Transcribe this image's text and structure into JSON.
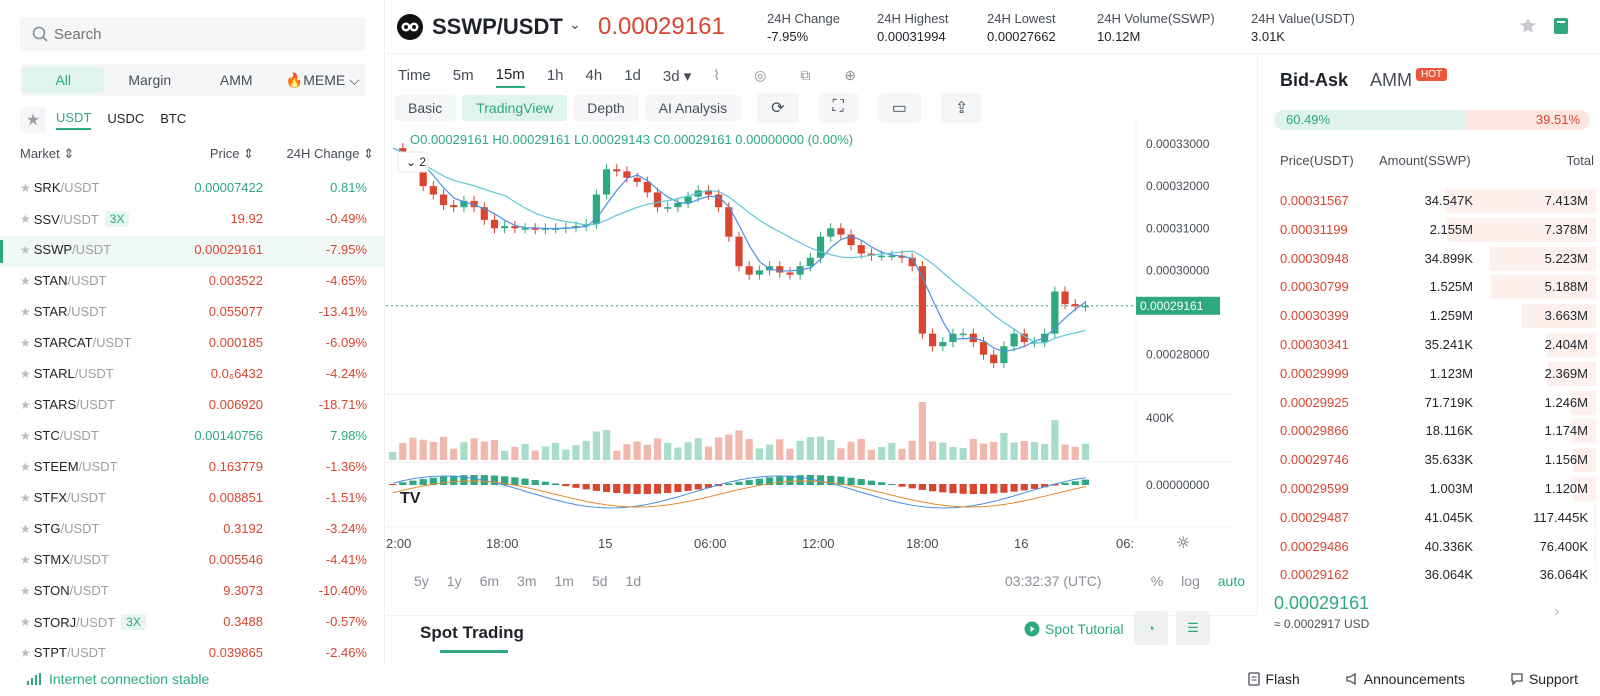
{
  "search": {
    "placeholder": "Search"
  },
  "categories": [
    "All",
    "Margin",
    "AMM",
    "🔥MEME ⌵"
  ],
  "quote_tabs": [
    "USDT",
    "USDC",
    "BTC"
  ],
  "market_header": {
    "market": "Market ⇕",
    "price": "Price ⇕",
    "change": "24H Change ⇕"
  },
  "markets": [
    {
      "base": "SRK",
      "quote": "/USDT",
      "lev": "",
      "price": "0.00007422",
      "change": "0.81%",
      "dir": "up",
      "selected": false
    },
    {
      "base": "SSV",
      "quote": "/USDT",
      "lev": "3X",
      "price": "19.92",
      "change": "-0.49%",
      "dir": "down",
      "selected": false
    },
    {
      "base": "SSWP",
      "quote": "/USDT",
      "lev": "",
      "price": "0.00029161",
      "change": "-7.95%",
      "dir": "down",
      "selected": true
    },
    {
      "base": "STAN",
      "quote": "/USDT",
      "lev": "",
      "price": "0.003522",
      "change": "-4.65%",
      "dir": "down",
      "selected": false
    },
    {
      "base": "STAR",
      "quote": "/USDT",
      "lev": "",
      "price": "0.055077",
      "change": "-13.41%",
      "dir": "down",
      "selected": false
    },
    {
      "base": "STARCAT",
      "quote": "/USDT",
      "lev": "",
      "price": "0.000185",
      "change": "-6.09%",
      "dir": "down",
      "selected": false
    },
    {
      "base": "STARL",
      "quote": "/USDT",
      "lev": "",
      "price": "0.0₆6432",
      "change": "-4.24%",
      "dir": "down",
      "selected": false
    },
    {
      "base": "STARS",
      "quote": "/USDT",
      "lev": "",
      "price": "0.006920",
      "change": "-18.71%",
      "dir": "down",
      "selected": false
    },
    {
      "base": "STC",
      "quote": "/USDT",
      "lev": "",
      "price": "0.00140756",
      "change": "7.98%",
      "dir": "up",
      "selected": false
    },
    {
      "base": "STEEM",
      "quote": "/USDT",
      "lev": "",
      "price": "0.163779",
      "change": "-1.36%",
      "dir": "down",
      "selected": false
    },
    {
      "base": "STFX",
      "quote": "/USDT",
      "lev": "",
      "price": "0.008851",
      "change": "-1.51%",
      "dir": "down",
      "selected": false
    },
    {
      "base": "STG",
      "quote": "/USDT",
      "lev": "",
      "price": "0.3192",
      "change": "-3.24%",
      "dir": "down",
      "selected": false
    },
    {
      "base": "STMX",
      "quote": "/USDT",
      "lev": "",
      "price": "0.005546",
      "change": "-4.41%",
      "dir": "down",
      "selected": false
    },
    {
      "base": "STON",
      "quote": "/USDT",
      "lev": "",
      "price": "9.3073",
      "change": "-10.40%",
      "dir": "down",
      "selected": false
    },
    {
      "base": "STORJ",
      "quote": "/USDT",
      "lev": "3X",
      "price": "0.3488",
      "change": "-0.57%",
      "dir": "down",
      "selected": false
    },
    {
      "base": "STPT",
      "quote": "/USDT",
      "lev": "",
      "price": "0.039865",
      "change": "-2.46%",
      "dir": "down",
      "selected": false
    }
  ],
  "header": {
    "pair": "SSWP/USDT",
    "last_price": "0.00029161",
    "stats": [
      {
        "label": "24H Change",
        "value": "-7.95%",
        "dir": "down"
      },
      {
        "label": "24H Highest",
        "value": "0.00031994",
        "dir": ""
      },
      {
        "label": "24H Lowest",
        "value": "0.00027662",
        "dir": ""
      },
      {
        "label": "24H Volume(SSWP)",
        "value": "10.12M",
        "dir": ""
      },
      {
        "label": "24H Value(USDT)",
        "value": "3.01K",
        "dir": ""
      }
    ]
  },
  "chart_toolbar": {
    "timeframes": [
      "Time",
      "5m",
      "15m",
      "1h",
      "4h",
      "1d",
      "3d ▾"
    ],
    "active_timeframe": "15m",
    "views": [
      "Basic",
      "TradingView",
      "Depth",
      "AI Analysis"
    ],
    "active_view": "TradingView"
  },
  "ohlc_text": "O0.00029161  H0.00029161  L0.00029143  C0.00029161  0.00000000 (0.00%)",
  "indicator_toggle": "2",
  "chart_data": {
    "type": "candlestick",
    "price_axis": [
      "0.00033000",
      "0.00032000",
      "0.00031000",
      "0.00030000",
      "0.00028000"
    ],
    "current_price_label": "0.00029161",
    "volume_axis": [
      "400K"
    ],
    "macd_axis": [
      "0.00000000"
    ],
    "time_axis": [
      "2:00",
      "18:00",
      "15",
      "06:00",
      "12:00",
      "18:00",
      "16",
      "06:"
    ],
    "price_series": [
      0.000329,
      0.000327,
      0.0003245,
      0.00032,
      0.000318,
      0.0003155,
      0.000315,
      0.0003165,
      0.000315,
      0.000312,
      0.00031,
      0.0003105,
      0.00031,
      0.00031,
      0.0003098,
      0.00031,
      0.00031,
      0.0003102,
      0.0003105,
      0.000311,
      0.000318,
      0.000324,
      0.0003235,
      0.000322,
      0.000321,
      0.0003185,
      0.000315,
      0.000315,
      0.000316,
      0.0003175,
      0.000319,
      0.000318,
      0.000315,
      0.000308,
      0.000301,
      0.000299,
      0.0003,
      0.000301,
      0.0002995,
      0.000299,
      0.000301,
      0.000303,
      0.000308,
      0.00031,
      0.0003085,
      0.000306,
      0.000304,
      0.0003035,
      0.0003035,
      0.0003035,
      0.000303,
      0.000301,
      0.000285,
      0.000282,
      0.000283,
      0.000285,
      0.000285,
      0.000283,
      0.00028,
      0.000278,
      0.000282,
      0.000285,
      0.000283,
      0.000283,
      0.000285,
      0.000295,
      0.000292,
      0.0002915,
      0.0002916
    ],
    "price_range": [
      0.000274,
      0.0003345
    ]
  },
  "range_buttons": [
    "5y",
    "1y",
    "6m",
    "3m",
    "1m",
    "5d",
    "1d"
  ],
  "chart_clock": "03:32:37 (UTC)",
  "scale_buttons": [
    "%",
    "log",
    "auto"
  ],
  "spot": {
    "title": "Spot Trading",
    "tutorial": "Spot Tutorial"
  },
  "orderbook": {
    "tab_bidask": "Bid-Ask",
    "tab_amm": "AMM",
    "hot": "HOT",
    "buy_ratio": "60.49%",
    "sell_ratio": "39.51%",
    "buy_fraction": 0.6049,
    "headers": {
      "price": "Price(USDT)",
      "amount": "Amount(SSWP)",
      "total": "Total"
    },
    "asks": [
      {
        "price": "0.00031567",
        "amount": "34.547K",
        "total": "7.413M",
        "depth": 1.0
      },
      {
        "price": "0.00031199",
        "amount": "2.155M",
        "total": "7.378M",
        "depth": 0.995
      },
      {
        "price": "0.00030948",
        "amount": "34.899K",
        "total": "5.223M",
        "depth": 0.705
      },
      {
        "price": "0.00030799",
        "amount": "1.525M",
        "total": "5.188M",
        "depth": 0.7
      },
      {
        "price": "0.00030399",
        "amount": "1.259M",
        "total": "3.663M",
        "depth": 0.494
      },
      {
        "price": "0.00030341",
        "amount": "35.241K",
        "total": "2.404M",
        "depth": 0.324
      },
      {
        "price": "0.00029999",
        "amount": "1.123M",
        "total": "2.369M",
        "depth": 0.32
      },
      {
        "price": "0.00029925",
        "amount": "71.719K",
        "total": "1.246M",
        "depth": 0.168
      },
      {
        "price": "0.00029866",
        "amount": "18.116K",
        "total": "1.174M",
        "depth": 0.158
      },
      {
        "price": "0.00029746",
        "amount": "35.633K",
        "total": "1.156M",
        "depth": 0.156
      },
      {
        "price": "0.00029599",
        "amount": "1.003M",
        "total": "1.120M",
        "depth": 0.151
      },
      {
        "price": "0.00029487",
        "amount": "41.045K",
        "total": "117.445K",
        "depth": 0.016
      },
      {
        "price": "0.00029486",
        "amount": "40.336K",
        "total": "76.400K",
        "depth": 0.01
      },
      {
        "price": "0.00029162",
        "amount": "36.064K",
        "total": "36.064K",
        "depth": 0.005
      }
    ],
    "last_price": "0.00029161",
    "last_usd": "≈ 0.0002917 USD"
  },
  "footer": {
    "connection": "Internet connection stable",
    "links": [
      "Flash",
      "Announcements",
      "Support"
    ]
  },
  "colors": {
    "up": "#2ea880",
    "down": "#d9452f",
    "ma1": "#4a90e2",
    "ma2": "#5bc8d6"
  }
}
